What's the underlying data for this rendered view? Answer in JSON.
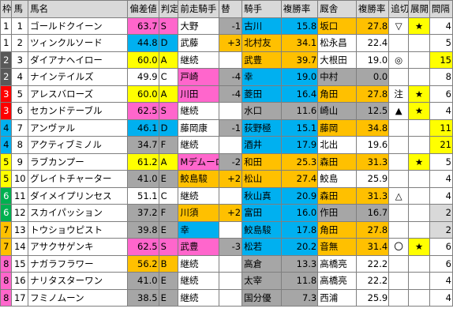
{
  "headers": [
    "枠",
    "馬",
    "馬名",
    "偏差値",
    "判定",
    "前走騎手",
    "替",
    "騎手",
    "複勝率",
    "厩舎",
    "複勝率",
    "追切",
    "展開",
    "間隔"
  ],
  "rows": [
    {
      "waku": "1",
      "umaban": "1",
      "name": "ゴールドクイーン",
      "hensachi": "63.7",
      "hantei": "S",
      "prev_jockey": "大野",
      "kae": "-1",
      "jockey": "古川",
      "j_rate": "15.8",
      "stable": "坂口",
      "s_rate": "27.8",
      "oikiri": "▽",
      "tenkai": "★",
      "kankaku": "4"
    },
    {
      "waku": "1",
      "umaban": "2",
      "name": "ツィンクルソード",
      "hensachi": "44.8",
      "hantei": "D",
      "prev_jockey": "武藤",
      "kae": "+3",
      "jockey": "北村友",
      "j_rate": "34.1",
      "stable": "松永昌",
      "s_rate": "22.4",
      "oikiri": "",
      "tenkai": "",
      "kankaku": "5"
    },
    {
      "waku": "2",
      "umaban": "3",
      "name": "ダイアナヘイロー",
      "hensachi": "60.0",
      "hantei": "A",
      "prev_jockey": "継続",
      "kae": "",
      "jockey": "武豊",
      "j_rate": "39.7",
      "stable": "大根田",
      "s_rate": "19.0",
      "oikiri": "◎",
      "tenkai": "",
      "kankaku": "15"
    },
    {
      "waku": "2",
      "umaban": "4",
      "name": "ナインテイルズ",
      "hensachi": "49.9",
      "hantei": "C",
      "prev_jockey": "戸崎",
      "kae": "-4",
      "jockey": "幸",
      "j_rate": "19.0",
      "stable": "中村",
      "s_rate": "0.0",
      "oikiri": "",
      "tenkai": "",
      "kankaku": "8"
    },
    {
      "waku": "3",
      "umaban": "5",
      "name": "アレスバローズ",
      "hensachi": "60.0",
      "hantei": "A",
      "prev_jockey": "川田",
      "kae": "-4",
      "jockey": "菱田",
      "j_rate": "16.4",
      "stable": "角田",
      "s_rate": "27.8",
      "oikiri": "注",
      "tenkai": "★",
      "kankaku": "6"
    },
    {
      "waku": "3",
      "umaban": "6",
      "name": "セカンドテーブル",
      "hensachi": "62.5",
      "hantei": "S",
      "prev_jockey": "継続",
      "kae": "",
      "jockey": "水口",
      "j_rate": "11.6",
      "stable": "崎山",
      "s_rate": "12.5",
      "oikiri": "▲",
      "tenkai": "★",
      "kankaku": "4"
    },
    {
      "waku": "4",
      "umaban": "7",
      "name": "アンヴァル",
      "hensachi": "46.1",
      "hantei": "D",
      "prev_jockey": "藤岡康",
      "kae": "-1",
      "jockey": "荻野極",
      "j_rate": "15.1",
      "stable": "藤岡",
      "s_rate": "34.8",
      "oikiri": "",
      "tenkai": "",
      "kankaku": "11"
    },
    {
      "waku": "4",
      "umaban": "8",
      "name": "アクティブミノル",
      "hensachi": "34.7",
      "hantei": "F",
      "prev_jockey": "継続",
      "kae": "",
      "jockey": "酒井",
      "j_rate": "17.9",
      "stable": "北出",
      "s_rate": "19.6",
      "oikiri": "",
      "tenkai": "",
      "kankaku": "21"
    },
    {
      "waku": "5",
      "umaban": "9",
      "name": "ラブカンプー",
      "hensachi": "61.2",
      "hantei": "A",
      "prev_jockey": "Mデムーロ",
      "kae": "-2",
      "jockey": "和田",
      "j_rate": "25.3",
      "stable": "森田",
      "s_rate": "31.3",
      "oikiri": "",
      "tenkai": "★",
      "kankaku": "5"
    },
    {
      "waku": "5",
      "umaban": "10",
      "name": "グレイトチャーター",
      "hensachi": "41.0",
      "hantei": "E",
      "prev_jockey": "鮫島駿",
      "kae": "+2",
      "jockey": "松山",
      "j_rate": "27.4",
      "stable": "鮫島",
      "s_rate": "25.9",
      "oikiri": "",
      "tenkai": "",
      "kankaku": "4"
    },
    {
      "waku": "6",
      "umaban": "11",
      "name": "ダイメイプリンセス",
      "hensachi": "51.1",
      "hantei": "C",
      "prev_jockey": "継続",
      "kae": "",
      "jockey": "秋山真",
      "j_rate": "20.9",
      "stable": "森田",
      "s_rate": "31.3",
      "oikiri": "△",
      "tenkai": "",
      "kankaku": "4"
    },
    {
      "waku": "6",
      "umaban": "12",
      "name": "スカイパッション",
      "hensachi": "37.2",
      "hantei": "F",
      "prev_jockey": "川須",
      "kae": "+2",
      "jockey": "富田",
      "j_rate": "16.0",
      "stable": "作田",
      "s_rate": "16.7",
      "oikiri": "",
      "tenkai": "",
      "kankaku": "2"
    },
    {
      "waku": "7",
      "umaban": "13",
      "name": "トウショウピスト",
      "hensachi": "39.8",
      "hantei": "E",
      "prev_jockey": "幸",
      "kae": "",
      "jockey": "鮫島駿",
      "j_rate": "17.8",
      "stable": "角田",
      "s_rate": "27.8",
      "oikiri": "",
      "tenkai": "",
      "kankaku": "2"
    },
    {
      "waku": "7",
      "umaban": "14",
      "name": "アサクサゲンキ",
      "hensachi": "62.5",
      "hantei": "S",
      "prev_jockey": "武豊",
      "kae": "-3",
      "jockey": "松若",
      "j_rate": "20.2",
      "stable": "音無",
      "s_rate": "31.4",
      "oikiri": "〇",
      "tenkai": "★",
      "kankaku": "6"
    },
    {
      "waku": "8",
      "umaban": "15",
      "name": "ナガラフラワー",
      "hensachi": "56.2",
      "hantei": "B",
      "prev_jockey": "継続",
      "kae": "",
      "jockey": "高倉",
      "j_rate": "13.3",
      "stable": "高橋亮",
      "s_rate": "22.2",
      "oikiri": "",
      "tenkai": "",
      "kankaku": "6"
    },
    {
      "waku": "8",
      "umaban": "16",
      "name": "ナリタスターワン",
      "hensachi": "41.0",
      "hantei": "E",
      "prev_jockey": "継続",
      "kae": "",
      "jockey": "太宰",
      "j_rate": "11.8",
      "stable": "高橋亮",
      "s_rate": "22.2",
      "oikiri": "",
      "tenkai": "",
      "kankaku": "4"
    },
    {
      "waku": "8",
      "umaban": "17",
      "name": "フミノムーン",
      "hensachi": "38.5",
      "hantei": "E",
      "prev_jockey": "継続",
      "kae": "",
      "jockey": "国分優",
      "j_rate": "7.3",
      "stable": "西浦",
      "s_rate": "25.9",
      "oikiri": "",
      "tenkai": "",
      "kankaku": "4"
    }
  ],
  "colors": {
    "waku": {
      "1": "#ffffff",
      "2": "#595959",
      "3": "#ff0000",
      "4": "#00b0f0",
      "5": "#ffff00",
      "6": "#00b050",
      "7": "#ffc000",
      "8": "#ff66cc"
    },
    "pink": "#ff66cc",
    "blue": "#00b0f0",
    "gray": "#a6a6a6",
    "orange": "#ffc000",
    "yellow": "#ffff00",
    "lightgray": "#d9d9d9"
  }
}
